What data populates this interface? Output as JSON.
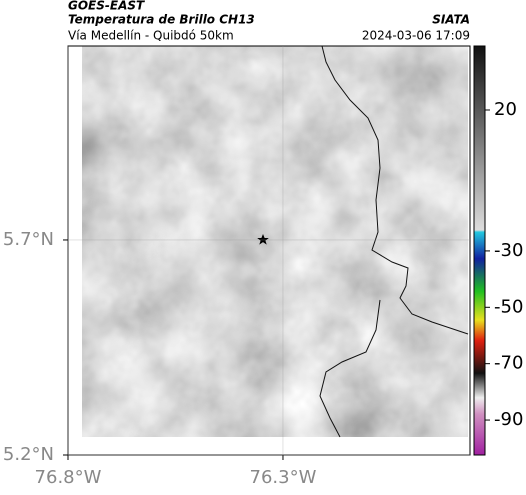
{
  "header": {
    "product": "GOES-EAST",
    "title": "Temperatura de Brillo CH13",
    "source": "SIATA",
    "route": "Vía Medellín - Quibdó 50km",
    "datetime": "2024-03-06 17:09"
  },
  "map": {
    "xlim": [
      -76.8,
      -75.865
    ],
    "ylim": [
      5.2,
      6.151
    ],
    "xticks": [
      {
        "value": -76.8,
        "label": "76.8°W"
      },
      {
        "value": -76.3,
        "label": "76.3°W"
      }
    ],
    "yticks": [
      {
        "value": 5.2,
        "label": "5.2°N"
      },
      {
        "value": 5.7,
        "label": "5.7°N"
      }
    ],
    "colorbar": {
      "lim": [
        -102.4,
        42.7
      ],
      "ticks": [
        20,
        -30,
        -50,
        -70,
        -90
      ]
    }
  }
}
